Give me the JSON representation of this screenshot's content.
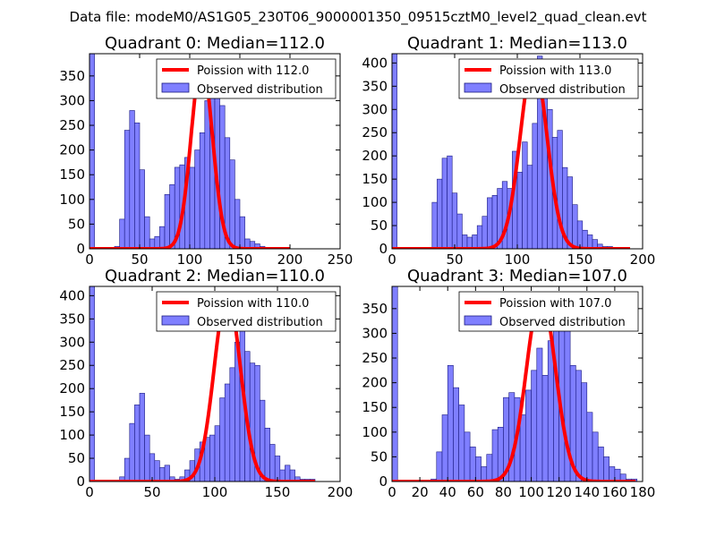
{
  "figure_title": "Data file: modeM0/AS1G05_230T06_9000001350_09515cztM0_level2_quad_clean.evt",
  "colors": {
    "hist_fill": "#7f7fff",
    "hist_edge": "#1a1a80",
    "poisson_line": "#ff0000"
  },
  "chart_data": [
    {
      "type": "bar",
      "title": "Quadrant 0: Median=112.0",
      "legend": [
        "Poission with 112.0",
        "Observed distribution"
      ],
      "xlim": [
        0,
        250
      ],
      "ylim": [
        0,
        395
      ],
      "xticks": [
        0,
        50,
        100,
        150,
        200,
        250
      ],
      "xtick_labels": [
        "0",
        "50",
        "100",
        "150",
        "200",
        "250"
      ],
      "yticks": [
        0,
        50,
        100,
        150,
        200,
        250,
        300,
        350
      ],
      "ytick_labels": [
        "0",
        "50",
        "100",
        "150",
        "200",
        "250",
        "300",
        "350"
      ],
      "bin_width": 5,
      "bins": [
        [
          0,
          395
        ],
        [
          5,
          0
        ],
        [
          10,
          0
        ],
        [
          15,
          0
        ],
        [
          20,
          0
        ],
        [
          25,
          5
        ],
        [
          30,
          60
        ],
        [
          35,
          240
        ],
        [
          40,
          280
        ],
        [
          45,
          255
        ],
        [
          50,
          160
        ],
        [
          55,
          65
        ],
        [
          60,
          20
        ],
        [
          65,
          25
        ],
        [
          70,
          45
        ],
        [
          75,
          110
        ],
        [
          80,
          130
        ],
        [
          85,
          165
        ],
        [
          90,
          170
        ],
        [
          95,
          185
        ],
        [
          100,
          165
        ],
        [
          105,
          200
        ],
        [
          110,
          235
        ],
        [
          115,
          300
        ],
        [
          120,
          380
        ],
        [
          125,
          380
        ],
        [
          130,
          290
        ],
        [
          135,
          225
        ],
        [
          140,
          180
        ],
        [
          145,
          100
        ],
        [
          150,
          65
        ],
        [
          155,
          20
        ],
        [
          160,
          15
        ],
        [
          165,
          10
        ],
        [
          170,
          5
        ]
      ],
      "poisson": {
        "mean": 112.0,
        "x_max": 200
      }
    },
    {
      "type": "bar",
      "title": "Quadrant 1: Median=113.0",
      "legend": [
        "Poission with 113.0",
        "Observed distribution"
      ],
      "xlim": [
        0,
        200
      ],
      "ylim": [
        0,
        420
      ],
      "xticks": [
        0,
        50,
        100,
        150,
        200
      ],
      "xtick_labels": [
        "0",
        "50",
        "100",
        "150",
        "200"
      ],
      "yticks": [
        0,
        50,
        100,
        150,
        200,
        250,
        300,
        350,
        400
      ],
      "ytick_labels": [
        "0",
        "50",
        "100",
        "150",
        "200",
        "250",
        "300",
        "350",
        "400"
      ],
      "bin_width": 4,
      "bins": [
        [
          0,
          420
        ],
        [
          4,
          0
        ],
        [
          8,
          0
        ],
        [
          12,
          0
        ],
        [
          16,
          0
        ],
        [
          20,
          0
        ],
        [
          24,
          0
        ],
        [
          28,
          0
        ],
        [
          32,
          100
        ],
        [
          36,
          150
        ],
        [
          40,
          195
        ],
        [
          44,
          200
        ],
        [
          48,
          120
        ],
        [
          52,
          75
        ],
        [
          56,
          30
        ],
        [
          60,
          25
        ],
        [
          64,
          30
        ],
        [
          68,
          50
        ],
        [
          72,
          70
        ],
        [
          76,
          110
        ],
        [
          80,
          115
        ],
        [
          84,
          130
        ],
        [
          88,
          145
        ],
        [
          92,
          130
        ],
        [
          96,
          210
        ],
        [
          100,
          165
        ],
        [
          104,
          230
        ],
        [
          108,
          180
        ],
        [
          112,
          270
        ],
        [
          116,
          415
        ],
        [
          120,
          355
        ],
        [
          124,
          300
        ],
        [
          128,
          240
        ],
        [
          132,
          255
        ],
        [
          136,
          175
        ],
        [
          140,
          155
        ],
        [
          144,
          95
        ],
        [
          148,
          60
        ],
        [
          152,
          40
        ],
        [
          156,
          30
        ],
        [
          160,
          20
        ],
        [
          164,
          10
        ],
        [
          168,
          5
        ],
        [
          172,
          5
        ]
      ],
      "poisson": {
        "mean": 113.0,
        "x_max": 190
      }
    },
    {
      "type": "bar",
      "title": "Quadrant 2: Median=110.0",
      "legend": [
        "Poission with 110.0",
        "Observed distribution"
      ],
      "xlim": [
        0,
        200
      ],
      "ylim": [
        0,
        420
      ],
      "xticks": [
        0,
        50,
        100,
        150,
        200
      ],
      "xtick_labels": [
        "0",
        "50",
        "100",
        "150",
        "200"
      ],
      "yticks": [
        0,
        50,
        100,
        150,
        200,
        250,
        300,
        350,
        400
      ],
      "ytick_labels": [
        "0",
        "50",
        "100",
        "150",
        "200",
        "250",
        "300",
        "350",
        "400"
      ],
      "bin_width": 4,
      "bins": [
        [
          0,
          420
        ],
        [
          4,
          0
        ],
        [
          8,
          0
        ],
        [
          12,
          0
        ],
        [
          16,
          0
        ],
        [
          20,
          0
        ],
        [
          24,
          10
        ],
        [
          28,
          50
        ],
        [
          32,
          125
        ],
        [
          36,
          165
        ],
        [
          40,
          190
        ],
        [
          44,
          100
        ],
        [
          48,
          60
        ],
        [
          52,
          45
        ],
        [
          56,
          30
        ],
        [
          60,
          35
        ],
        [
          64,
          10
        ],
        [
          68,
          5
        ],
        [
          72,
          10
        ],
        [
          76,
          25
        ],
        [
          80,
          45
        ],
        [
          84,
          70
        ],
        [
          88,
          85
        ],
        [
          92,
          95
        ],
        [
          96,
          100
        ],
        [
          100,
          120
        ],
        [
          104,
          180
        ],
        [
          108,
          210
        ],
        [
          112,
          245
        ],
        [
          116,
          300
        ],
        [
          120,
          335
        ],
        [
          124,
          280
        ],
        [
          128,
          255
        ],
        [
          132,
          250
        ],
        [
          136,
          175
        ],
        [
          140,
          115
        ],
        [
          144,
          80
        ],
        [
          148,
          55
        ],
        [
          152,
          25
        ],
        [
          156,
          35
        ],
        [
          160,
          25
        ],
        [
          164,
          10
        ],
        [
          168,
          5
        ],
        [
          172,
          5
        ],
        [
          176,
          5
        ]
      ],
      "poisson": {
        "mean": 110.0,
        "x_max": 180
      }
    },
    {
      "type": "bar",
      "title": "Quadrant 3: Median=107.0",
      "legend": [
        "Poission with 107.0",
        "Observed distribution"
      ],
      "xlim": [
        0,
        180
      ],
      "ylim": [
        0,
        395
      ],
      "xticks": [
        0,
        20,
        40,
        60,
        80,
        100,
        120,
        140,
        160,
        180
      ],
      "xtick_labels": [
        "0",
        "20",
        "40",
        "60",
        "80",
        "100",
        "120",
        "140",
        "160",
        "180"
      ],
      "yticks": [
        0,
        50,
        100,
        150,
        200,
        250,
        300,
        350
      ],
      "ytick_labels": [
        "0",
        "50",
        "100",
        "150",
        "200",
        "250",
        "300",
        "350"
      ],
      "bin_width": 4,
      "bins": [
        [
          0,
          395
        ],
        [
          4,
          0
        ],
        [
          8,
          0
        ],
        [
          12,
          0
        ],
        [
          16,
          0
        ],
        [
          20,
          0
        ],
        [
          24,
          0
        ],
        [
          28,
          5
        ],
        [
          32,
          60
        ],
        [
          36,
          135
        ],
        [
          40,
          235
        ],
        [
          44,
          190
        ],
        [
          48,
          155
        ],
        [
          52,
          100
        ],
        [
          56,
          70
        ],
        [
          60,
          50
        ],
        [
          64,
          30
        ],
        [
          68,
          55
        ],
        [
          72,
          105
        ],
        [
          76,
          110
        ],
        [
          80,
          170
        ],
        [
          84,
          180
        ],
        [
          88,
          170
        ],
        [
          92,
          135
        ],
        [
          96,
          185
        ],
        [
          100,
          225
        ],
        [
          104,
          270
        ],
        [
          108,
          215
        ],
        [
          112,
          285
        ],
        [
          116,
          350
        ],
        [
          120,
          380
        ],
        [
          124,
          340
        ],
        [
          128,
          235
        ],
        [
          132,
          225
        ],
        [
          136,
          200
        ],
        [
          140,
          140
        ],
        [
          144,
          100
        ],
        [
          148,
          70
        ],
        [
          152,
          50
        ],
        [
          156,
          30
        ],
        [
          160,
          25
        ],
        [
          164,
          15
        ],
        [
          168,
          5
        ],
        [
          172,
          5
        ]
      ],
      "poisson": {
        "mean": 107.0,
        "x_max": 175
      }
    }
  ]
}
